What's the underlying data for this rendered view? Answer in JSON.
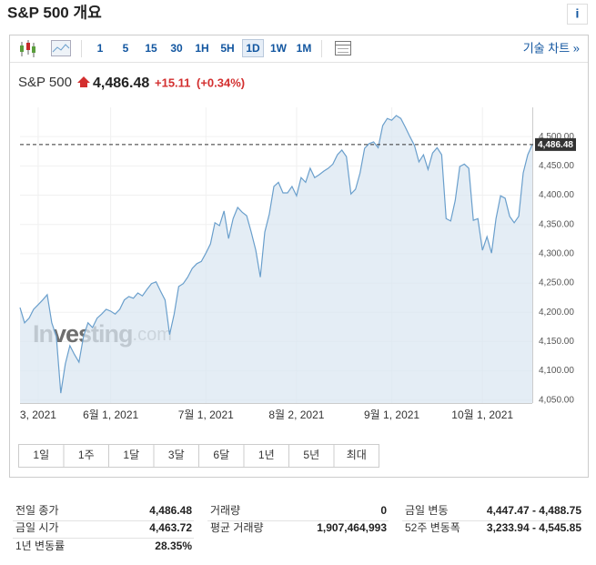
{
  "header": {
    "title": "S&P 500 개요",
    "info": "i"
  },
  "toolbar": {
    "intervals": [
      "1",
      "5",
      "15",
      "30",
      "1H",
      "5H",
      "1D",
      "1W",
      "1M"
    ],
    "active": "1D",
    "link": "기술 차트 »"
  },
  "quote": {
    "name": "S&P 500",
    "price": "4,486.48",
    "change": "+15.11",
    "change_pct": "(+0.34%)"
  },
  "chart": {
    "type": "area",
    "color": "#6a9fcc",
    "watermark": {
      "brand": "Investing",
      "suffix": ".com"
    },
    "xlim": [
      0,
      113
    ],
    "xticks": [
      {
        "value": 4,
        "label": "3, 2021"
      },
      {
        "value": 20,
        "label": "6월 1, 2021"
      },
      {
        "value": 41,
        "label": "7월 1, 2021"
      },
      {
        "value": 61,
        "label": "8월 2, 2021"
      },
      {
        "value": 82,
        "label": "9월 1, 2021"
      },
      {
        "value": 102,
        "label": "10월 1, 2021"
      }
    ],
    "ylim": [
      4045,
      4550
    ],
    "yticks": [
      {
        "value": 4050,
        "label": "4,050.00"
      },
      {
        "value": 4100,
        "label": "4,100.00"
      },
      {
        "value": 4150,
        "label": "4,150.00"
      },
      {
        "value": 4200,
        "label": "4,200.00"
      },
      {
        "value": 4250,
        "label": "4,250.00"
      },
      {
        "value": 4300,
        "label": "4,300.00"
      },
      {
        "value": 4350,
        "label": "4,350.00"
      },
      {
        "value": 4400,
        "label": "4,400.00"
      },
      {
        "value": 4450,
        "label": "4,450.00"
      },
      {
        "value": 4500,
        "label": "4,500.00"
      }
    ],
    "values": [
      4208,
      4182,
      4190,
      4205,
      4213,
      4221,
      4230,
      4182,
      4159,
      4062,
      4112,
      4143,
      4128,
      4115,
      4159,
      4182,
      4174,
      4190,
      4197,
      4205,
      4202,
      4197,
      4205,
      4221,
      4227,
      4224,
      4233,
      4228,
      4239,
      4249,
      4252,
      4236,
      4221,
      4162,
      4197,
      4244,
      4249,
      4260,
      4275,
      4283,
      4287,
      4301,
      4317,
      4353,
      4348,
      4373,
      4326,
      4360,
      4379,
      4371,
      4365,
      4337,
      4306,
      4260,
      4337,
      4368,
      4415,
      4422,
      4404,
      4404,
      4415,
      4399,
      4430,
      4422,
      4446,
      4430,
      4435,
      4441,
      4446,
      4453,
      4469,
      4477,
      4466,
      4402,
      4410,
      4438,
      4480,
      4488,
      4491,
      4481,
      4519,
      4531,
      4528,
      4536,
      4531,
      4516,
      4500,
      4485,
      4457,
      4469,
      4444,
      4472,
      4481,
      4469,
      4360,
      4356,
      4391,
      4449,
      4453,
      4446,
      4357,
      4360,
      4306,
      4329,
      4301,
      4360,
      4399,
      4395,
      4364,
      4353,
      4364,
      4438,
      4469,
      4486.48
    ]
  },
  "ranges": [
    "1일",
    "1주",
    "1달",
    "3달",
    "6달",
    "1년",
    "5년",
    "최대"
  ],
  "stats": [
    [
      {
        "label": "전일 종가",
        "value": "4,486.48"
      },
      {
        "label": "금일 시가",
        "value": "4,463.72"
      },
      {
        "label": "1년 변동률",
        "value": "28.35%"
      }
    ],
    [
      {
        "label": "거래량",
        "value": "0"
      },
      {
        "label": "평균 거래량",
        "value": "1,907,464,993"
      }
    ],
    [
      {
        "label": "금일 변동",
        "value": "4,447.47 - 4,488.75"
      },
      {
        "label": "52주 변동폭",
        "value": "3,233.94 - 4,545.85"
      }
    ]
  ]
}
